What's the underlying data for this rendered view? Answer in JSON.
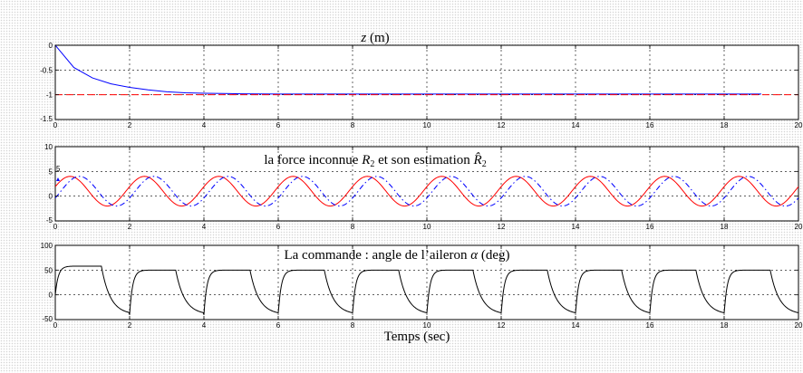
{
  "chart_data": [
    {
      "type": "line",
      "title": "z (m)",
      "xlim": [
        0,
        20
      ],
      "ylim": [
        -1.5,
        0
      ],
      "xticks": [
        0,
        2,
        4,
        6,
        8,
        10,
        12,
        14,
        16,
        18,
        20
      ],
      "yticks": [
        0,
        -0.5,
        -1,
        -1.5
      ],
      "grid": true,
      "series": [
        {
          "color": "#0000ff",
          "style": "solid",
          "x": [
            0,
            0.5,
            1,
            1.5,
            2,
            2.5,
            3,
            3.5,
            4,
            5,
            6,
            8,
            10,
            12,
            14,
            16,
            18,
            19
          ],
          "y": [
            0,
            -0.45,
            -0.66,
            -0.78,
            -0.85,
            -0.9,
            -0.94,
            -0.96,
            -0.97,
            -0.98,
            -0.985,
            -0.985,
            -0.985,
            -0.985,
            -0.985,
            -0.985,
            -0.985,
            -0.985
          ]
        },
        {
          "color": "#ff0000",
          "style": "dashed",
          "x": [
            0,
            20
          ],
          "y": [
            -1,
            -1
          ]
        }
      ]
    },
    {
      "type": "line",
      "title": "la force inconnue R2 et son estimation R̂2",
      "xlim": [
        0,
        20
      ],
      "ylim": [
        -5,
        10
      ],
      "xticks": [
        0,
        2,
        4,
        6,
        8,
        10,
        12,
        14,
        16,
        18,
        20
      ],
      "yticks": [
        10,
        5,
        0,
        -5
      ],
      "grid": true,
      "series": [
        {
          "color": "#ff0000",
          "style": "solid",
          "kind": "sine",
          "offset": 1.0,
          "amplitude": 3.0,
          "period": 2.0,
          "phase": -0.1
        },
        {
          "color": "#0000ff",
          "style": "dashdot",
          "kind": "sine",
          "offset": 1.0,
          "amplitude": 3.0,
          "period": 2.0,
          "phase": 0.15
        }
      ]
    },
    {
      "type": "line",
      "title": "La commande : angle de l'aileron α (deg)",
      "xlabel": "Temps (sec)",
      "xlim": [
        0,
        20
      ],
      "ylim": [
        -50,
        100
      ],
      "xticks": [
        0,
        2,
        4,
        6,
        8,
        10,
        12,
        14,
        16,
        18,
        20
      ],
      "yticks": [
        100,
        50,
        0,
        -50
      ],
      "grid": true,
      "series": [
        {
          "color": "#000000",
          "style": "solid",
          "kind": "square",
          "high": 50,
          "low": -40,
          "period": 2.0
        }
      ]
    }
  ]
}
